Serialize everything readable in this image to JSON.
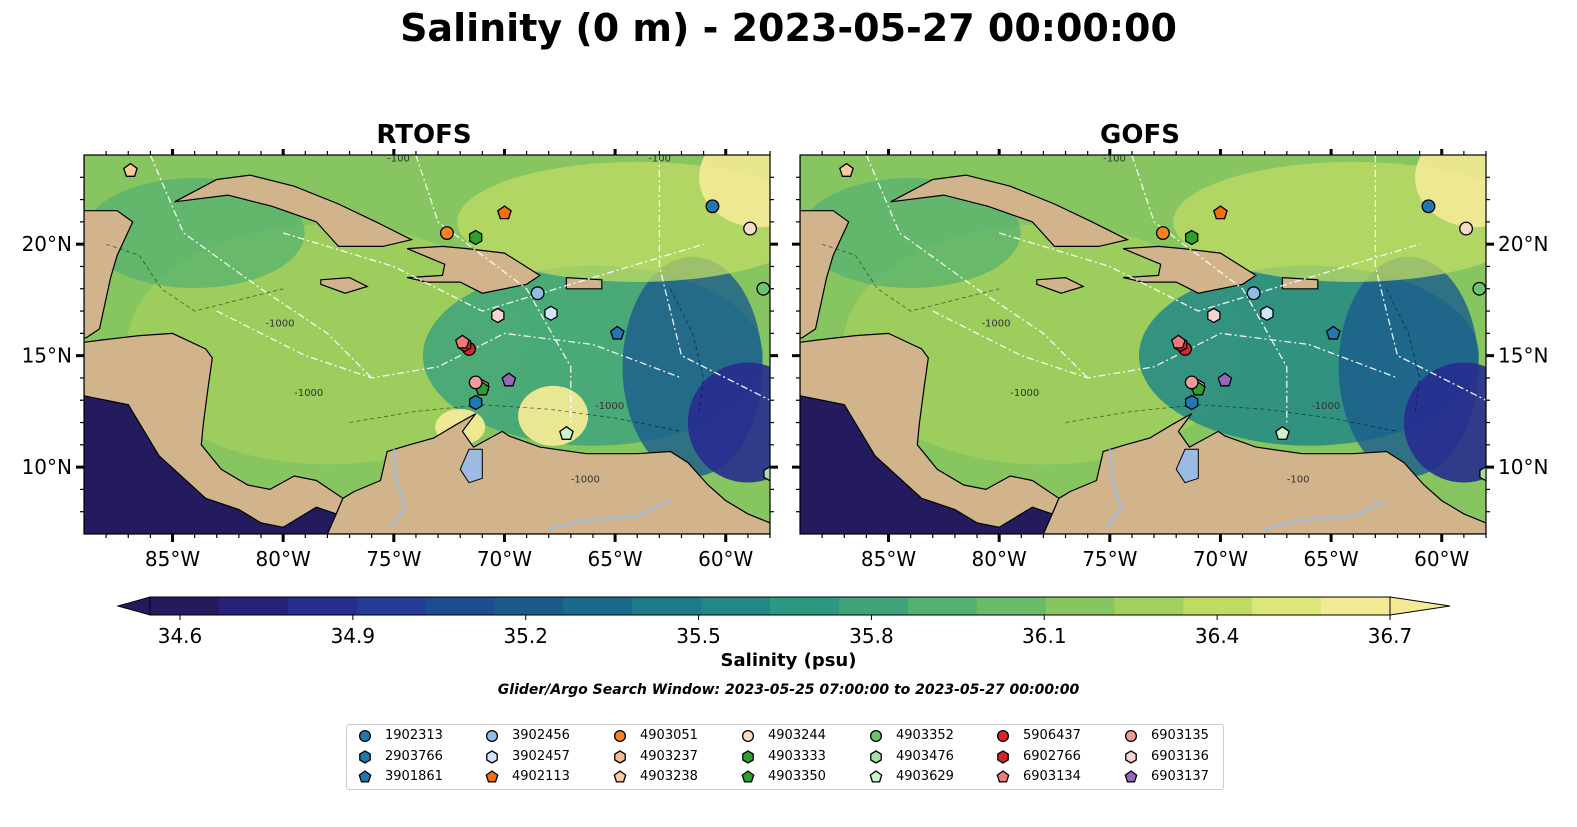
{
  "title": "Salinity (0 m) - 2023-05-27 00:00:00",
  "panels": [
    {
      "title": "RTOFS",
      "contour_labels": [
        "-100",
        "-1000",
        "-1000",
        "-1000",
        "-1000",
        "-100"
      ]
    },
    {
      "title": "GOFS",
      "contour_labels": [
        "-100",
        "-1000",
        "-1000",
        "-1000",
        "-100"
      ]
    }
  ],
  "colorbar": {
    "label": "Salinity (psu)",
    "ticks": [
      "34.6",
      "34.9",
      "35.2",
      "35.5",
      "35.8",
      "36.1",
      "36.4",
      "36.7"
    ],
    "range": [
      34.6,
      36.7
    ],
    "colors": [
      "#241b5e",
      "#27217a",
      "#272c8f",
      "#233b95",
      "#1d4c90",
      "#1a5b8c",
      "#196a8b",
      "#1d7a89",
      "#228886",
      "#2c9782",
      "#3ea37b",
      "#53b072",
      "#6bba68",
      "#86c55f",
      "#a2d05c",
      "#c0db64",
      "#dce67a",
      "#f3ea96"
    ]
  },
  "search_window": "Glider/Argo Search Window: 2023-05-25 07:00:00 to 2023-05-27 00:00:00",
  "map": {
    "lon_range": [
      -89,
      -58
    ],
    "lat_range": [
      7,
      24
    ],
    "x_ticks": [
      "85°W",
      "80°W",
      "75°W",
      "70°W",
      "65°W",
      "60°W"
    ],
    "y_ticks": [
      "20°N",
      "15°N",
      "10°N"
    ],
    "land_color": "#d2b48c",
    "ocean_deep_color": "#241b5e"
  },
  "chart_data": {
    "type": "scatter",
    "title": "Salinity (0 m) - 2023-05-27 00:00:00",
    "xlabel": "",
    "ylabel": "",
    "xlim": [
      -89,
      -58
    ],
    "ylim": [
      7,
      24
    ],
    "series": [
      {
        "name": "1902313",
        "marker": "circle",
        "color": "#1f77b4",
        "lon": -60.6,
        "lat": 21.7
      },
      {
        "name": "2903766",
        "marker": "hexagon",
        "color": "#1f77b4",
        "lon": -71.3,
        "lat": 12.9
      },
      {
        "name": "3901861",
        "marker": "pentagon",
        "color": "#1f77b4",
        "lon": -64.9,
        "lat": 16.0
      },
      {
        "name": "3902456",
        "marker": "circle",
        "color": "#8fbde8",
        "lon": -68.5,
        "lat": 17.8
      },
      {
        "name": "3902457",
        "marker": "hexagon",
        "color": "#cde6fb",
        "lon": -67.9,
        "lat": 16.9
      },
      {
        "name": "4903051",
        "marker": "circle",
        "color": "#f5821f",
        "lon": -72.6,
        "lat": 20.5
      },
      {
        "name": "4903237",
        "marker": "hexagon",
        "color": "#f9b98a",
        "lon": -71.0,
        "lat": 13.6
      },
      {
        "name": "4903238",
        "marker": "pentagon",
        "color": "#fcc99b",
        "lon": -86.9,
        "lat": 23.3
      },
      {
        "name": "4902113",
        "marker": "pentagon",
        "color": "#f36f10",
        "lon": -70.0,
        "lat": 21.4
      },
      {
        "name": "4903244",
        "marker": "circle",
        "color": "#f9dcc4",
        "lon": -58.9,
        "lat": 20.7
      },
      {
        "name": "4903333",
        "marker": "hexagon",
        "color": "#2ca02c",
        "lon": -71.3,
        "lat": 20.3
      },
      {
        "name": "4903350",
        "marker": "pentagon",
        "color": "#2ca02c",
        "lon": -71.0,
        "lat": 13.5
      },
      {
        "name": "4903352",
        "marker": "circle",
        "color": "#6cc46c",
        "lon": -58.3,
        "lat": 18.0
      },
      {
        "name": "4903476",
        "marker": "hexagon",
        "color": "#a3e0a3",
        "lon": -58.0,
        "lat": 9.7
      },
      {
        "name": "4903629",
        "marker": "pentagon",
        "color": "#ccf5cc",
        "lon": -67.2,
        "lat": 11.5
      },
      {
        "name": "5906437",
        "marker": "circle",
        "color": "#d62728",
        "lon": -71.6,
        "lat": 15.3
      },
      {
        "name": "6902766",
        "marker": "hexagon",
        "color": "#d62728",
        "lon": -71.8,
        "lat": 15.5
      },
      {
        "name": "6903134",
        "marker": "pentagon",
        "color": "#f07a7a",
        "lon": -71.9,
        "lat": 15.6
      },
      {
        "name": "6903135",
        "marker": "circle",
        "color": "#f29b9b",
        "lon": -71.3,
        "lat": 13.8
      },
      {
        "name": "6903136",
        "marker": "hexagon",
        "color": "#fad2d2",
        "lon": -70.3,
        "lat": 16.8
      },
      {
        "name": "6903137",
        "marker": "pentagon",
        "color": "#9467bd",
        "lon": -69.8,
        "lat": 13.9
      }
    ]
  }
}
